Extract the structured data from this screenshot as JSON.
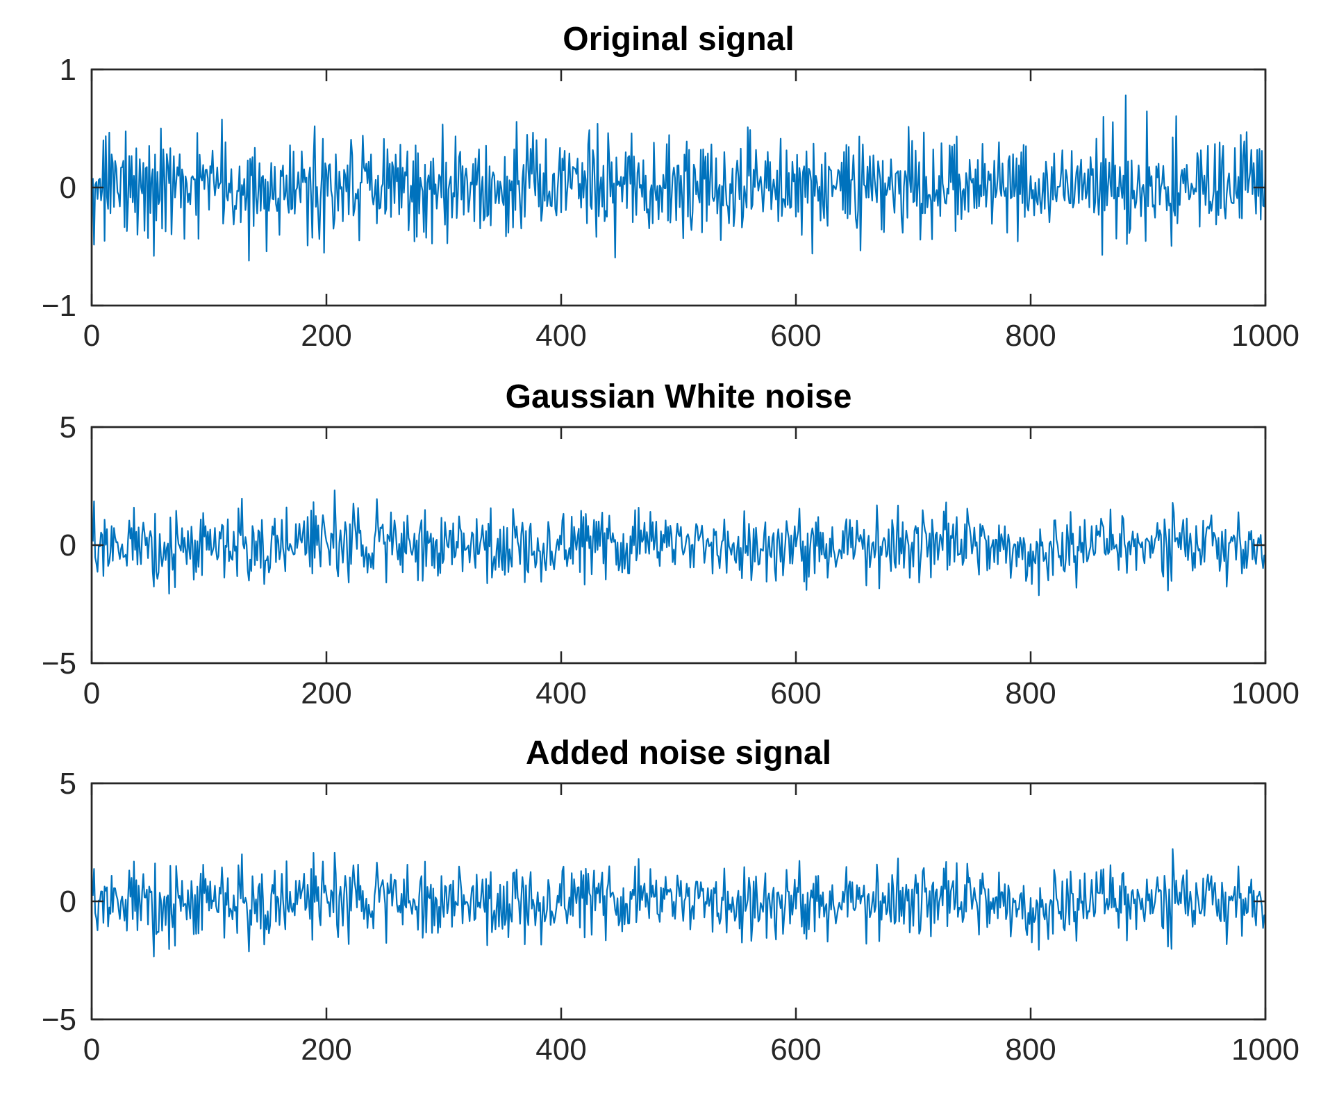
{
  "chart_data": [
    {
      "type": "line",
      "title": "Original signal",
      "xlim": [
        0,
        1000
      ],
      "ylim": [
        -1,
        1
      ],
      "xticks": [
        0,
        200,
        400,
        600,
        800,
        1000
      ],
      "yticks": [
        -1,
        0,
        1
      ],
      "xtick_labels": [
        "0",
        "200",
        "400",
        "600",
        "800",
        "1000"
      ],
      "ytick_labels": [
        "−1",
        "0",
        "1"
      ],
      "grid": false,
      "series": [
        {
          "color": "#0072BD",
          "x_start": 1,
          "x_step": 1,
          "n": 1000,
          "approx_std": 0.23,
          "y_range": [
            -0.86,
            0.78
          ]
        }
      ]
    },
    {
      "type": "line",
      "title": "Gaussian White noise",
      "xlim": [
        0,
        1000
      ],
      "ylim": [
        -5,
        5
      ],
      "xticks": [
        0,
        200,
        400,
        600,
        800,
        1000
      ],
      "yticks": [
        -5,
        0,
        5
      ],
      "xtick_labels": [
        "0",
        "200",
        "400",
        "600",
        "800",
        "1000"
      ],
      "ytick_labels": [
        "−5",
        "0",
        "5"
      ],
      "grid": false,
      "series": [
        {
          "color": "#0072BD",
          "x_start": 1,
          "x_step": 1,
          "n": 1000,
          "approx_std": 0.75,
          "y_range": [
            -2.6,
            2.8
          ]
        }
      ]
    },
    {
      "type": "line",
      "title": "Added noise signal",
      "xlim": [
        0,
        1000
      ],
      "ylim": [
        -5,
        5
      ],
      "xticks": [
        0,
        200,
        400,
        600,
        800,
        1000
      ],
      "yticks": [
        -5,
        0,
        5
      ],
      "xtick_labels": [
        "0",
        "200",
        "400",
        "600",
        "800",
        "1000"
      ],
      "ytick_labels": [
        "−5",
        "0",
        "5"
      ],
      "grid": false,
      "series": [
        {
          "color": "#0072BD",
          "x_start": 1,
          "x_step": 1,
          "n": 1000,
          "approx_std": 0.78,
          "y_range": [
            -2.8,
            2.8
          ]
        }
      ]
    }
  ]
}
